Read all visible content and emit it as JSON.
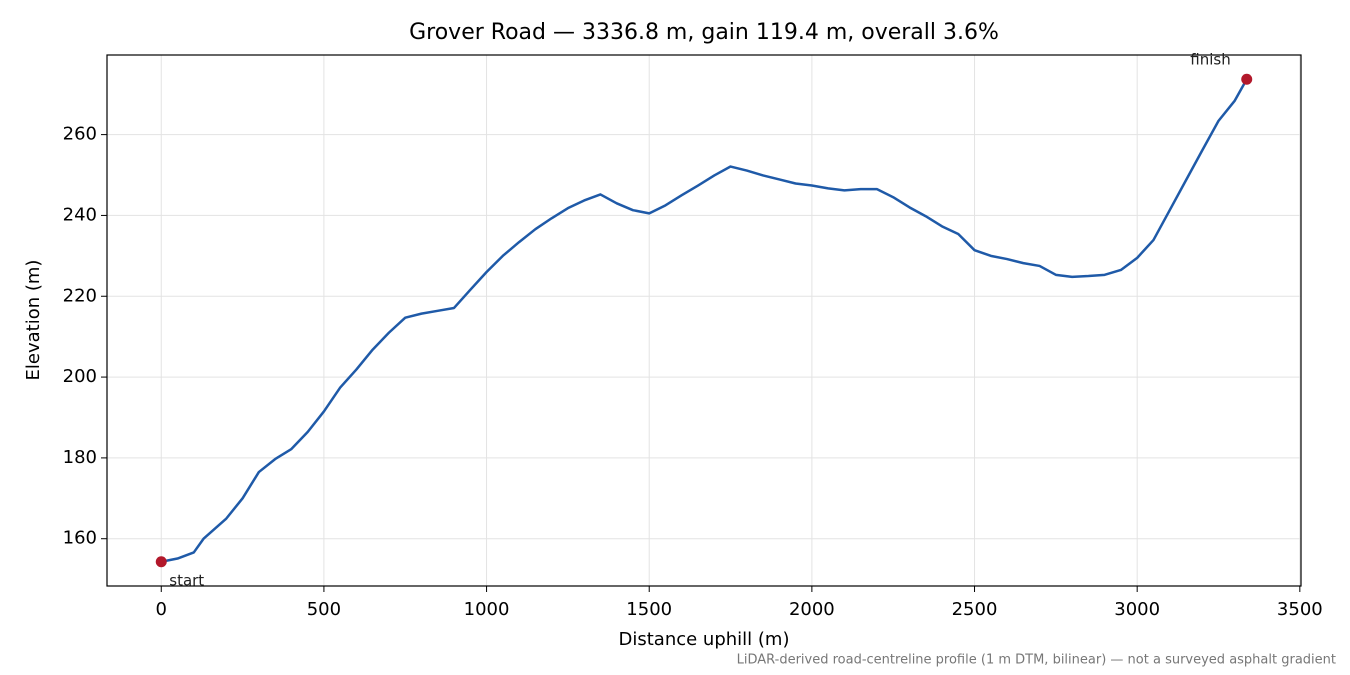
{
  "chart_data": {
    "type": "line",
    "title": "Grover Road — 3336.8 m, gain 119.4 m, overall 3.6%",
    "xlabel": "Distance uphill (m)",
    "ylabel": "Elevation (m)",
    "footnote": "LiDAR-derived road-centreline profile (1 m DTM, bilinear) — not a surveyed asphalt gradient",
    "x": [
      0,
      50,
      100,
      130,
      200,
      250,
      300,
      350,
      400,
      450,
      500,
      550,
      600,
      650,
      700,
      750,
      800,
      850,
      900,
      950,
      1000,
      1050,
      1100,
      1150,
      1200,
      1250,
      1300,
      1350,
      1400,
      1450,
      1500,
      1550,
      1600,
      1650,
      1700,
      1750,
      1800,
      1850,
      1900,
      1950,
      2000,
      2050,
      2100,
      2150,
      2200,
      2250,
      2300,
      2350,
      2400,
      2450,
      2500,
      2550,
      2600,
      2650,
      2700,
      2750,
      2800,
      2850,
      2900,
      2950,
      3000,
      3050,
      3100,
      3150,
      3200,
      3250,
      3300,
      3336.8
    ],
    "series": [
      {
        "name": "Elevation",
        "color": "#1f5aa8",
        "values": [
          154.3,
          155.1,
          156.6,
          160,
          165,
          170,
          176.5,
          179.7,
          182.2,
          186.4,
          191.5,
          197.4,
          201.9,
          206.8,
          211,
          214.7,
          215.7,
          216.4,
          217.1,
          221.6,
          226,
          230,
          233.4,
          236.6,
          239.3,
          241.8,
          243.7,
          245.2,
          243,
          241.3,
          240.5,
          242.5,
          245,
          247.4,
          249.9,
          252.1,
          251.1,
          249.9,
          248.9,
          247.9,
          247.4,
          246.7,
          246.2,
          246.5,
          246.5,
          244.5,
          242,
          239.8,
          237.3,
          235.4,
          231.4,
          230,
          229.2,
          228.2,
          227.5,
          225.3,
          224.8,
          225,
          225.3,
          226.5,
          229.5,
          233.9,
          241.3,
          248.7,
          256.1,
          263.4,
          268.4,
          273.7
        ]
      }
    ],
    "marker_color": "#b2182b",
    "annotations": [
      "start",
      "finish"
    ],
    "xlim": [
      -166.8,
      3503.6
    ],
    "ylim": [
      148.3,
      279.7
    ],
    "xticks": [
      0,
      500,
      1000,
      1500,
      2000,
      2500,
      3000,
      3500
    ],
    "yticks": [
      160,
      180,
      200,
      220,
      240,
      260
    ],
    "grid": true
  }
}
